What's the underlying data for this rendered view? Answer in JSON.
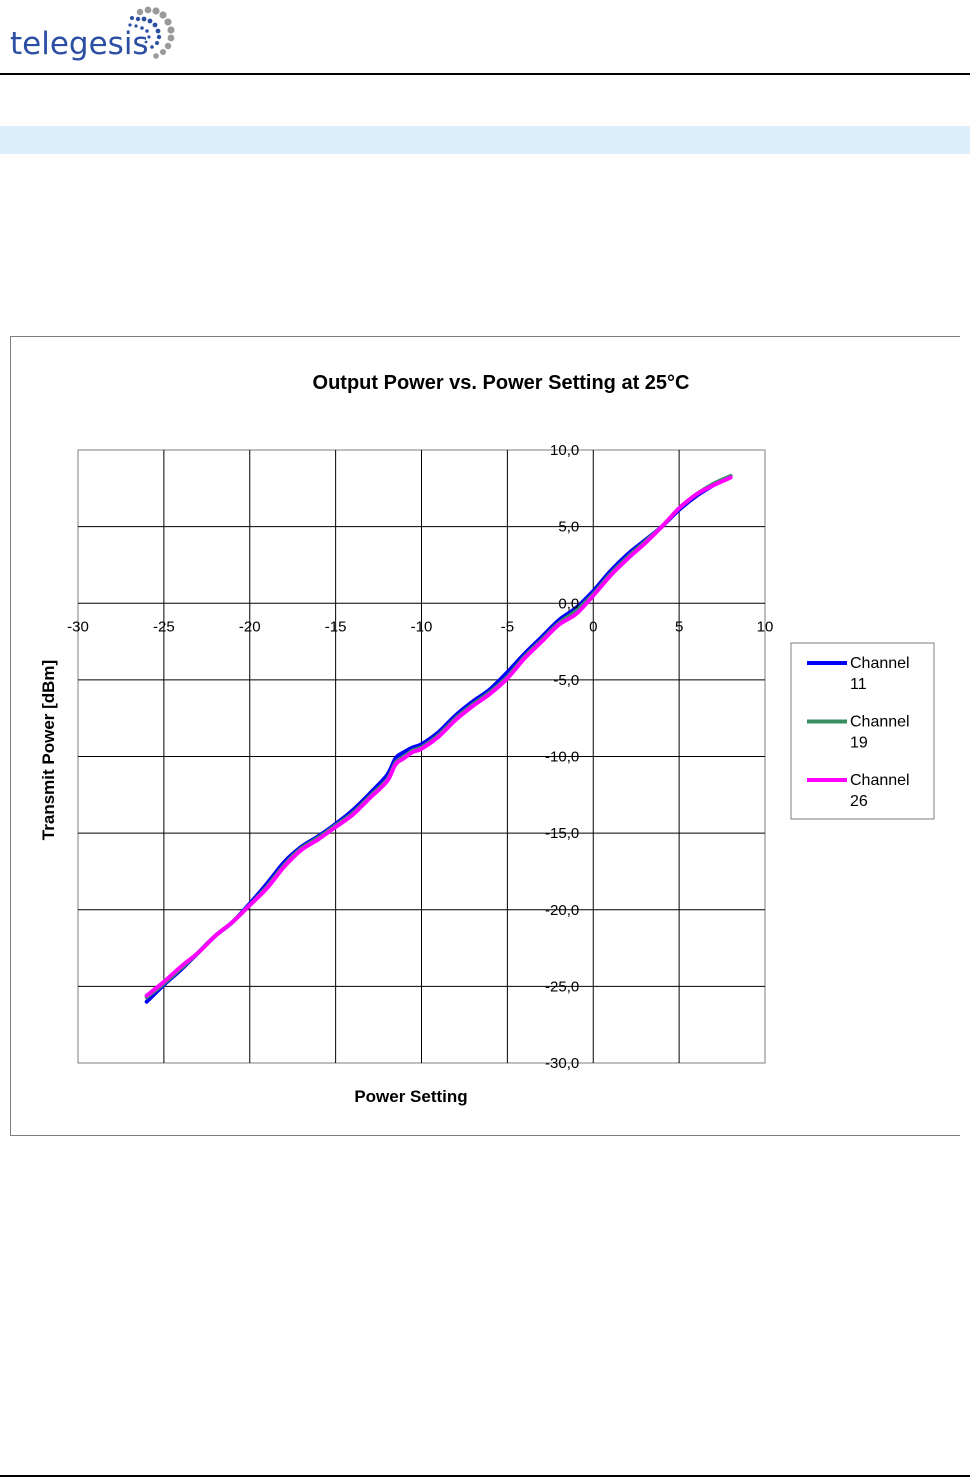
{
  "header": {
    "logo_text": "telegesis",
    "logo_color": "#2b4fa3"
  },
  "band_color": "#dbeef9",
  "chart_data": {
    "type": "line",
    "title": "Output Power vs. Power Setting at 25°C",
    "xlabel": "Power Setting",
    "ylabel": "Transmit Power [dBm]",
    "xlim": [
      -30,
      10
    ],
    "ylim": [
      -30,
      10
    ],
    "x_ticks": [
      "-30",
      "-25",
      "-20",
      "-15",
      "-10",
      "-5",
      "0",
      "5",
      "10"
    ],
    "y_ticks": [
      "10,0",
      "5,0",
      "0,0",
      "-5,0",
      "-10,0",
      "-15,0",
      "-20,0",
      "-25,0",
      "-30,0"
    ],
    "grid": true,
    "legend_position": "right",
    "series": [
      {
        "name": "Channel 11",
        "color": "#0000ff",
        "x": [
          -26,
          -25,
          -24,
          -23,
          -22,
          -21,
          -20,
          -19,
          -18,
          -17,
          -16,
          -15,
          -14,
          -13,
          -12,
          -11.5,
          -11,
          -10.5,
          -10,
          -9,
          -8,
          -7,
          -6,
          -5,
          -4,
          -3,
          -2,
          -1,
          0,
          1,
          2,
          3,
          4,
          5,
          6,
          7,
          8
        ],
        "y": [
          -26.0,
          -24.9,
          -23.9,
          -22.8,
          -21.7,
          -20.8,
          -19.6,
          -18.3,
          -16.9,
          -15.9,
          -15.2,
          -14.4,
          -13.5,
          -12.4,
          -11.2,
          -10.1,
          -9.7,
          -9.4,
          -9.2,
          -8.4,
          -7.3,
          -6.4,
          -5.6,
          -4.5,
          -3.3,
          -2.2,
          -1.1,
          -0.3,
          0.8,
          2.1,
          3.2,
          4.1,
          5.0,
          6.1,
          7.0,
          7.7,
          8.3
        ]
      },
      {
        "name": "Channel 19",
        "color": "#3a8f62",
        "x": [
          -26,
          -25,
          -24,
          -23,
          -22,
          -21,
          -20,
          -19,
          -18,
          -17,
          -16,
          -15,
          -14,
          -13,
          -12,
          -11.5,
          -11,
          -10.5,
          -10,
          -9,
          -8,
          -7,
          -6,
          -5,
          -4,
          -3,
          -2,
          -1,
          0,
          1,
          2,
          3,
          4,
          5,
          6,
          7,
          8
        ],
        "y": [
          -25.7,
          -24.8,
          -23.8,
          -22.8,
          -21.7,
          -20.8,
          -19.7,
          -18.5,
          -17.1,
          -16.0,
          -15.3,
          -14.5,
          -13.7,
          -12.6,
          -11.5,
          -10.4,
          -10.0,
          -9.6,
          -9.4,
          -8.6,
          -7.5,
          -6.6,
          -5.8,
          -4.8,
          -3.5,
          -2.4,
          -1.3,
          -0.5,
          0.6,
          1.9,
          3.0,
          4.0,
          5.0,
          6.2,
          7.1,
          7.8,
          8.3
        ]
      },
      {
        "name": "Channel 26",
        "color": "#ff00ff",
        "x": [
          -26,
          -25,
          -24,
          -23,
          -22,
          -21,
          -20,
          -19,
          -18,
          -17,
          -16,
          -15,
          -14,
          -13,
          -12,
          -11.5,
          -11,
          -10.5,
          -10,
          -9,
          -8,
          -7,
          -6,
          -5,
          -4,
          -3,
          -2,
          -1,
          0,
          1,
          2,
          3,
          4,
          5,
          6,
          7,
          8
        ],
        "y": [
          -25.6,
          -24.7,
          -23.7,
          -22.8,
          -21.7,
          -20.8,
          -19.7,
          -18.6,
          -17.2,
          -16.1,
          -15.4,
          -14.6,
          -13.8,
          -12.7,
          -11.6,
          -10.5,
          -10.1,
          -9.7,
          -9.5,
          -8.7,
          -7.6,
          -6.7,
          -5.9,
          -4.9,
          -3.6,
          -2.5,
          -1.4,
          -0.7,
          0.5,
          1.8,
          2.9,
          3.9,
          5.0,
          6.2,
          7.1,
          7.7,
          8.2
        ]
      }
    ],
    "legend": [
      {
        "line1": "Channel",
        "line2": "11"
      },
      {
        "line1": "Channel",
        "line2": "19"
      },
      {
        "line1": "Channel",
        "line2": "26"
      }
    ]
  }
}
